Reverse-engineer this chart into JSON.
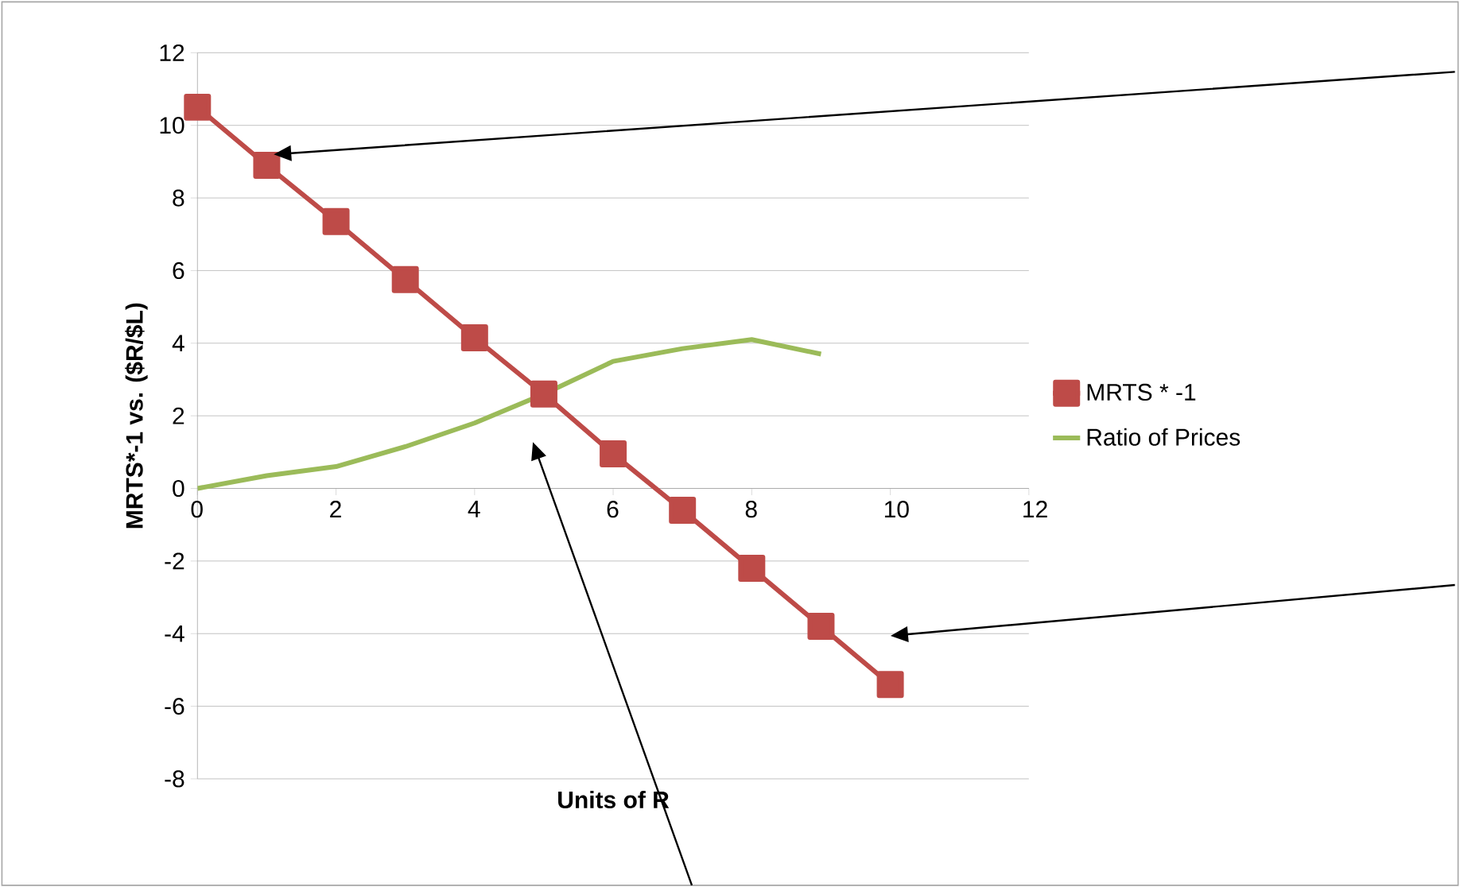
{
  "chart_data": {
    "type": "line",
    "xlabel": "Units of R",
    "ylabel": "MRTS*-1 vs. ($R/$L)",
    "xlim": [
      0,
      12
    ],
    "xticks": [
      0,
      2,
      4,
      6,
      8,
      10,
      12
    ],
    "ylim": [
      -8,
      12
    ],
    "yticks": [
      -8,
      -6,
      -4,
      -2,
      0,
      2,
      4,
      6,
      8,
      10,
      12
    ],
    "grid": "y",
    "legend": "right",
    "series": [
      {
        "name": "MRTS * -1",
        "color": "#be4b48",
        "marker": "square",
        "x": [
          0,
          1,
          2,
          3,
          4,
          5,
          6,
          7,
          8,
          9,
          10
        ],
        "values": [
          10.5,
          8.9,
          7.35,
          5.75,
          4.15,
          2.6,
          0.95,
          -0.6,
          -2.2,
          -3.8,
          -5.4
        ]
      },
      {
        "name": "Ratio of Prices",
        "color": "#9bbb59",
        "marker": "none",
        "x": [
          0,
          1,
          2,
          3,
          4,
          5,
          6,
          7,
          8,
          9
        ],
        "values": [
          0,
          0.35,
          0.6,
          1.15,
          1.8,
          2.6,
          3.5,
          3.85,
          4.1,
          3.7
        ]
      }
    ]
  }
}
